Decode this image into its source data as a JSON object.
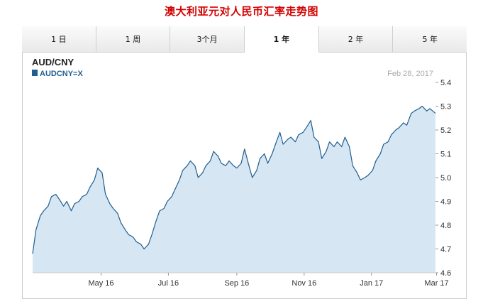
{
  "page": {
    "title": "澳大利亚元对人民币汇率走势图"
  },
  "tabs": [
    {
      "label": "1 日",
      "active": false
    },
    {
      "label": "1 周",
      "active": false
    },
    {
      "label": "3个月",
      "active": false
    },
    {
      "label": "1 年",
      "active": true
    },
    {
      "label": "2 年",
      "active": false
    },
    {
      "label": "5 年",
      "active": false
    }
  ],
  "colors": {
    "line": "#1f5e91",
    "fill": "#d6e6f2",
    "title_red": "#d40000",
    "date_grey": "#aaaaaa"
  },
  "chart_data": {
    "type": "area",
    "title": "AUD/CNY",
    "date_label": "Feb 28, 2017",
    "series": [
      {
        "name": "AUDCNY=X",
        "points": [
          [
            "2016-02-29",
            4.68
          ],
          [
            "2016-03-03",
            4.78
          ],
          [
            "2016-03-07",
            4.84
          ],
          [
            "2016-03-10",
            4.86
          ],
          [
            "2016-03-14",
            4.88
          ],
          [
            "2016-03-17",
            4.92
          ],
          [
            "2016-03-21",
            4.93
          ],
          [
            "2016-03-24",
            4.91
          ],
          [
            "2016-03-28",
            4.88
          ],
          [
            "2016-03-31",
            4.9
          ],
          [
            "2016-04-04",
            4.86
          ],
          [
            "2016-04-07",
            4.89
          ],
          [
            "2016-04-11",
            4.9
          ],
          [
            "2016-04-14",
            4.92
          ],
          [
            "2016-04-18",
            4.93
          ],
          [
            "2016-04-21",
            4.96
          ],
          [
            "2016-04-25",
            4.99
          ],
          [
            "2016-04-28",
            5.04
          ],
          [
            "2016-05-02",
            5.02
          ],
          [
            "2016-05-05",
            4.93
          ],
          [
            "2016-05-09",
            4.89
          ],
          [
            "2016-05-12",
            4.87
          ],
          [
            "2016-05-16",
            4.85
          ],
          [
            "2016-05-19",
            4.81
          ],
          [
            "2016-05-23",
            4.78
          ],
          [
            "2016-05-26",
            4.76
          ],
          [
            "2016-05-30",
            4.75
          ],
          [
            "2016-06-02",
            4.73
          ],
          [
            "2016-06-06",
            4.72
          ],
          [
            "2016-06-09",
            4.7
          ],
          [
            "2016-06-13",
            4.72
          ],
          [
            "2016-06-16",
            4.76
          ],
          [
            "2016-06-20",
            4.82
          ],
          [
            "2016-06-23",
            4.86
          ],
          [
            "2016-06-27",
            4.87
          ],
          [
            "2016-06-30",
            4.9
          ],
          [
            "2016-07-04",
            4.92
          ],
          [
            "2016-07-07",
            4.95
          ],
          [
            "2016-07-11",
            4.99
          ],
          [
            "2016-07-14",
            5.03
          ],
          [
            "2016-07-18",
            5.05
          ],
          [
            "2016-07-21",
            5.07
          ],
          [
            "2016-07-25",
            5.05
          ],
          [
            "2016-07-28",
            5.0
          ],
          [
            "2016-08-01",
            5.02
          ],
          [
            "2016-08-04",
            5.05
          ],
          [
            "2016-08-08",
            5.07
          ],
          [
            "2016-08-11",
            5.11
          ],
          [
            "2016-08-15",
            5.09
          ],
          [
            "2016-08-18",
            5.06
          ],
          [
            "2016-08-22",
            5.05
          ],
          [
            "2016-08-25",
            5.07
          ],
          [
            "2016-08-29",
            5.05
          ],
          [
            "2016-09-01",
            5.04
          ],
          [
            "2016-09-05",
            5.06
          ],
          [
            "2016-09-08",
            5.12
          ],
          [
            "2016-09-12",
            5.05
          ],
          [
            "2016-09-15",
            5.0
          ],
          [
            "2016-09-19",
            5.03
          ],
          [
            "2016-09-22",
            5.08
          ],
          [
            "2016-09-26",
            5.1
          ],
          [
            "2016-09-29",
            5.06
          ],
          [
            "2016-10-03",
            5.1
          ],
          [
            "2016-10-06",
            5.14
          ],
          [
            "2016-10-10",
            5.19
          ],
          [
            "2016-10-13",
            5.14
          ],
          [
            "2016-10-17",
            5.16
          ],
          [
            "2016-10-20",
            5.17
          ],
          [
            "2016-10-24",
            5.15
          ],
          [
            "2016-10-27",
            5.18
          ],
          [
            "2016-10-31",
            5.19
          ],
          [
            "2016-11-03",
            5.21
          ],
          [
            "2016-11-07",
            5.24
          ],
          [
            "2016-11-10",
            5.17
          ],
          [
            "2016-11-14",
            5.15
          ],
          [
            "2016-11-17",
            5.08
          ],
          [
            "2016-11-21",
            5.11
          ],
          [
            "2016-11-24",
            5.15
          ],
          [
            "2016-11-28",
            5.13
          ],
          [
            "2016-12-01",
            5.15
          ],
          [
            "2016-12-05",
            5.13
          ],
          [
            "2016-12-08",
            5.17
          ],
          [
            "2016-12-12",
            5.13
          ],
          [
            "2016-12-15",
            5.05
          ],
          [
            "2016-12-19",
            5.02
          ],
          [
            "2016-12-22",
            4.99
          ],
          [
            "2016-12-26",
            5.0
          ],
          [
            "2016-12-29",
            5.01
          ],
          [
            "2017-01-02",
            5.03
          ],
          [
            "2017-01-05",
            5.07
          ],
          [
            "2017-01-09",
            5.1
          ],
          [
            "2017-01-12",
            5.14
          ],
          [
            "2017-01-16",
            5.15
          ],
          [
            "2017-01-19",
            5.18
          ],
          [
            "2017-01-23",
            5.2
          ],
          [
            "2017-01-26",
            5.21
          ],
          [
            "2017-01-30",
            5.23
          ],
          [
            "2017-02-02",
            5.22
          ],
          [
            "2017-02-06",
            5.27
          ],
          [
            "2017-02-09",
            5.28
          ],
          [
            "2017-02-13",
            5.29
          ],
          [
            "2017-02-16",
            5.3
          ],
          [
            "2017-02-20",
            5.28
          ],
          [
            "2017-02-23",
            5.29
          ],
          [
            "2017-02-28",
            5.27
          ]
        ]
      }
    ],
    "xlim": [
      "2016-02-29",
      "2017-02-28"
    ],
    "ylim": [
      4.6,
      5.4
    ],
    "yticks": [
      4.6,
      4.7,
      4.8,
      4.9,
      5.0,
      5.1,
      5.2,
      5.3,
      5.4
    ],
    "ytick_labels": [
      "4.6",
      "4.7",
      "4.8",
      "4.9",
      "5.0",
      "5.1",
      "5.2",
      "5.3",
      "5.4"
    ],
    "xticks": [
      "2016-05-01",
      "2016-07-01",
      "2016-09-01",
      "2016-11-01",
      "2017-01-01",
      "2017-03-01"
    ],
    "xtick_labels": [
      "May 16",
      "Jul 16",
      "Sep 16",
      "Nov 16",
      "Jan 17",
      "Mar 17"
    ],
    "grid": false,
    "legend": "top-left"
  }
}
